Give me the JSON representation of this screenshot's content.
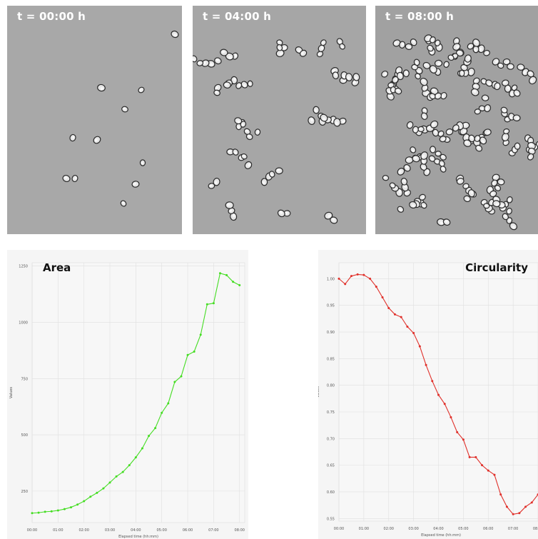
{
  "panels": [
    {
      "time_label": "t = 00:00 h",
      "bg": "#a8a8a8"
    },
    {
      "time_label": "t = 04:00 h",
      "bg": "#a6a6a6"
    },
    {
      "time_label": "t = 08:00 h",
      "bg": "#a1a1a1"
    }
  ],
  "chart_data": [
    {
      "type": "line",
      "title": "Area",
      "xlabel": "Elapsed time (hh:mm)",
      "ylabel": "Values",
      "x_ticks": [
        "00:00",
        "01:00",
        "02:00",
        "03:00",
        "04:00",
        "05:00",
        "06:00",
        "07:00",
        "08:00"
      ],
      "y_ticks": [
        "250",
        "500",
        "750",
        "1000",
        "1250"
      ],
      "xlim": [
        0,
        8.2
      ],
      "ylim": [
        110,
        1265
      ],
      "grid": true,
      "color": "#44dd22",
      "series": [
        {
          "x": [
            0,
            0.25,
            0.5,
            0.75,
            1,
            1.25,
            1.5,
            1.75,
            2,
            2.25,
            2.5,
            2.75,
            3,
            3.25,
            3.5,
            3.75,
            4,
            4.25,
            4.5,
            4.75,
            5,
            5.25,
            5.5,
            5.75,
            6,
            6.25,
            6.5,
            6.75,
            7,
            7.25,
            7.5,
            7.75,
            8
          ],
          "values": [
            152,
            154,
            158,
            160,
            164,
            170,
            178,
            190,
            205,
            225,
            242,
            262,
            288,
            315,
            335,
            365,
            400,
            440,
            495,
            530,
            598,
            640,
            735,
            760,
            855,
            870,
            945,
            1080,
            1085,
            1218,
            1210,
            1180,
            1165
          ]
        }
      ]
    },
    {
      "type": "line",
      "title": "Circularity",
      "xlabel": "Elapsed time (hh:mm)",
      "ylabel": "Values",
      "x_ticks": [
        "00:00",
        "01:00",
        "02:00",
        "03:00",
        "04:00",
        "05:00",
        "06:00",
        "07:00",
        "08:00"
      ],
      "y_ticks": [
        "0.55",
        "0.60",
        "0.65",
        "0.70",
        "0.75",
        "0.80",
        "0.85",
        "0.90",
        "0.95",
        "1.00"
      ],
      "xlim": [
        0,
        8.2
      ],
      "ylim": [
        0.545,
        1.03
      ],
      "grid": true,
      "color": "#e0302a",
      "series": [
        {
          "x": [
            0,
            0.25,
            0.5,
            0.75,
            1,
            1.25,
            1.5,
            1.75,
            2,
            2.25,
            2.5,
            2.75,
            3,
            3.25,
            3.5,
            3.75,
            4,
            4.25,
            4.5,
            4.75,
            5,
            5.25,
            5.5,
            5.75,
            6,
            6.25,
            6.5,
            6.75,
            7,
            7.25,
            7.5,
            7.75,
            8
          ],
          "values": [
            1.0,
            0.99,
            1.005,
            1.008,
            1.007,
            1.0,
            0.985,
            0.965,
            0.945,
            0.933,
            0.928,
            0.91,
            0.898,
            0.873,
            0.838,
            0.808,
            0.782,
            0.765,
            0.74,
            0.712,
            0.698,
            0.665,
            0.665,
            0.65,
            0.64,
            0.632,
            0.595,
            0.572,
            0.558,
            0.56,
            0.572,
            0.58,
            0.595
          ]
        }
      ]
    }
  ]
}
